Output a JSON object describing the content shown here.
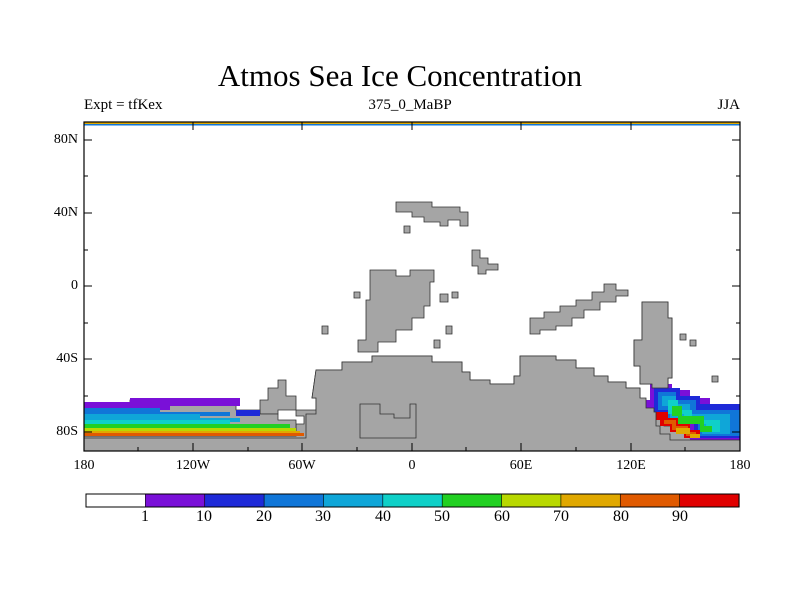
{
  "title": "Atmos Sea Ice Concentration",
  "subtitle_left": "Expt = tfKex",
  "subtitle_center": "375_0_MaBP",
  "subtitle_right": "JJA",
  "map": {
    "lon_range": [
      -180,
      180
    ],
    "lat_range": [
      -90,
      90
    ],
    "y_ticks": [
      "80N",
      "40N",
      "0",
      "40S",
      "80S"
    ],
    "x_ticks": [
      "180",
      "120W",
      "60W",
      "0",
      "60E",
      "120E",
      "180"
    ],
    "land_color": "#a5a5a5",
    "ocean_color": "#ffffff"
  },
  "colorbar": {
    "levels": [
      "1",
      "10",
      "20",
      "30",
      "40",
      "50",
      "60",
      "70",
      "80",
      "90"
    ],
    "colors": [
      "#ffffff",
      "#7a10d8",
      "#1e2ad8",
      "#1076d8",
      "#0fa6d8",
      "#0fd0c8",
      "#22d022",
      "#b8d800",
      "#e0a800",
      "#e05a00",
      "#e00000"
    ]
  }
}
